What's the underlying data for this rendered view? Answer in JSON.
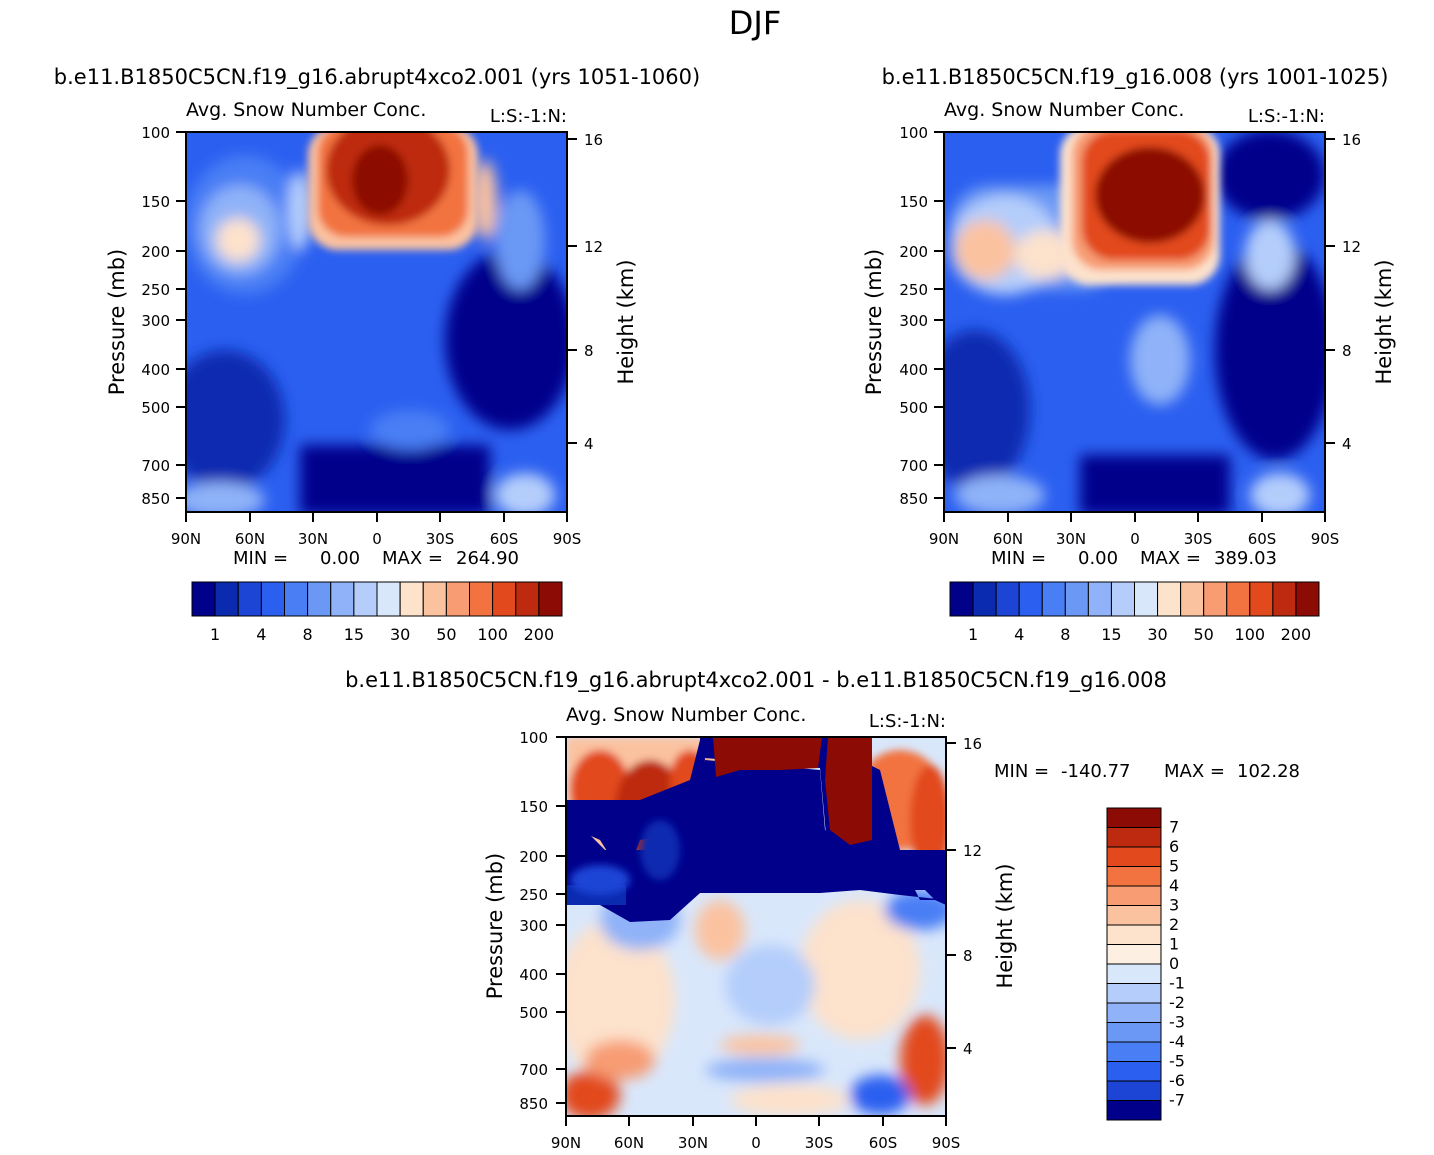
{
  "page_title": "DJF",
  "chart_data": [
    {
      "type": "heatmap",
      "id": "panel-exp",
      "case_title": "b.e11.B1850C5CN.f19_g16.abrupt4xco2.001 (yrs 1051-1060)",
      "title": "Avg. Snow Number Conc.",
      "right_string": "L:S:-1:N:",
      "xlabel": "",
      "ylabel": "Pressure (mb)",
      "ylabel_right": "Height (km)",
      "x_ticks": [
        "90N",
        "60N",
        "30N",
        "0",
        "30S",
        "60S",
        "90S"
      ],
      "y_ticks": [
        "100",
        "150",
        "200",
        "250",
        "300",
        "400",
        "500",
        "700",
        "850"
      ],
      "y_ticks_right": [
        "16",
        "12",
        "8",
        "4"
      ],
      "stats": {
        "min_label": "MIN =",
        "min": "0.00",
        "max_label": "MAX =",
        "max": "264.90"
      },
      "colorbar_levels": [
        1,
        2,
        4,
        6,
        8,
        10,
        15,
        20,
        30,
        40,
        50,
        70,
        100,
        150,
        200
      ],
      "colorbar_tick_labels": [
        "1",
        "4",
        "8",
        "15",
        "30",
        "50",
        "100",
        "200"
      ],
      "colorbar_colors": [
        "#00008b",
        "#0a2ab0",
        "#1c45d6",
        "#2b5ff0",
        "#4a7ef5",
        "#6b98f5",
        "#8fb2f8",
        "#b4cdfb",
        "#d9e7fb",
        "#fde2cc",
        "#fbc2a0",
        "#f79c73",
        "#f2733f",
        "#e24a1e",
        "#bd2a0f",
        "#8c0b05"
      ],
      "features": [
        {
          "region": "upper tropical max",
          "lat_range": "35N-50S",
          "pressure": "100-200",
          "value": "200+"
        },
        {
          "region": "NH midlatitude upper",
          "lat_range": "80N-40N",
          "pressure": "150-250",
          "value": "15-30"
        },
        {
          "region": "tropical lower",
          "lat_range": "20N-40S",
          "pressure": "700-850",
          "value": "<1"
        }
      ]
    },
    {
      "type": "heatmap",
      "id": "panel-ctl",
      "case_title": "b.e11.B1850C5CN.f19_g16.008 (yrs 1001-1025)",
      "title": "Avg. Snow Number Conc.",
      "right_string": "L:S:-1:N:",
      "xlabel": "",
      "ylabel": "Pressure (mb)",
      "ylabel_right": "Height (km)",
      "x_ticks": [
        "90N",
        "60N",
        "30N",
        "0",
        "30S",
        "60S",
        "90S"
      ],
      "y_ticks": [
        "100",
        "150",
        "200",
        "250",
        "300",
        "400",
        "500",
        "700",
        "850"
      ],
      "y_ticks_right": [
        "16",
        "12",
        "8",
        "4"
      ],
      "stats": {
        "min_label": "MIN =",
        "min": "0.00",
        "max_label": "MAX =",
        "max": "389.03"
      },
      "colorbar_levels": [
        1,
        2,
        4,
        6,
        8,
        10,
        15,
        20,
        30,
        40,
        50,
        70,
        100,
        150,
        200
      ],
      "colorbar_tick_labels": [
        "1",
        "4",
        "8",
        "15",
        "30",
        "50",
        "100",
        "200"
      ],
      "colorbar_colors": [
        "#00008b",
        "#0a2ab0",
        "#1c45d6",
        "#2b5ff0",
        "#4a7ef5",
        "#6b98f5",
        "#8fb2f8",
        "#b4cdfb",
        "#d9e7fb",
        "#fde2cc",
        "#fbc2a0",
        "#f79c73",
        "#f2733f",
        "#e24a1e",
        "#bd2a0f",
        "#8c0b05"
      ],
      "features": [
        {
          "region": "upper tropical max",
          "lat_range": "20N-40S",
          "pressure": "100-250",
          "value": "200+"
        },
        {
          "region": "NH midlatitude upper",
          "lat_range": "85N-40N",
          "pressure": "150-250",
          "value": "30-50"
        },
        {
          "region": "tropical lower",
          "lat_range": "20N-40S",
          "pressure": "700-850",
          "value": "<1"
        }
      ]
    },
    {
      "type": "heatmap",
      "id": "panel-diff",
      "case_title": "b.e11.B1850C5CN.f19_g16.abrupt4xco2.001 - b.e11.B1850C5CN.f19_g16.008",
      "title": "Avg. Snow Number Conc.",
      "right_string": "L:S:-1:N:",
      "xlabel": "",
      "ylabel": "Pressure (mb)",
      "ylabel_right": "Height (km)",
      "x_ticks": [
        "90N",
        "60N",
        "30N",
        "0",
        "30S",
        "60S",
        "90S"
      ],
      "y_ticks": [
        "100",
        "150",
        "200",
        "250",
        "300",
        "400",
        "500",
        "700",
        "850"
      ],
      "y_ticks_right": [
        "16",
        "12",
        "8",
        "4"
      ],
      "stats": {
        "min_label": "MIN =",
        "min": "-140.77",
        "max_label": "MAX =",
        "max": "102.28"
      },
      "colorbar_levels": [
        -7,
        -6,
        -5,
        -4,
        -3,
        -2,
        -1,
        0,
        1,
        2,
        3,
        4,
        5,
        6,
        7
      ],
      "colorbar_tick_labels": [
        "7",
        "6",
        "5",
        "4",
        "3",
        "2",
        "1",
        "0",
        "-1",
        "-2",
        "-3",
        "-4",
        "-5",
        "-6",
        "-7"
      ],
      "colorbar_colors": [
        "#8c0b05",
        "#bd2a0f",
        "#e24a1e",
        "#f2733f",
        "#f79c73",
        "#fbc2a0",
        "#fde2cc",
        "#fdf0e3",
        "#d9e7fb",
        "#b4cdfb",
        "#8fb2f8",
        "#6b98f5",
        "#4a7ef5",
        "#2b5ff0",
        "#1c45d6",
        "#00008b"
      ],
      "features": [
        {
          "region": "upper tropics decrease",
          "lat_range": "50N-35S",
          "pressure": "120-250",
          "value": "<-7"
        },
        {
          "region": "tropopause increase",
          "lat_range": "20N-35S",
          "pressure": "100-120",
          "value": ">7"
        },
        {
          "region": "SH upper increase",
          "lat_range": "35S-55S",
          "pressure": "100-170",
          "value": ">7"
        },
        {
          "region": "NH upper increase",
          "lat_range": "90N-50N",
          "pressure": "100-200",
          "value": "1-7"
        },
        {
          "region": "mid troposphere",
          "lat_range": "90N-90S",
          "pressure": "300-850",
          "value": "-1 to 1"
        }
      ]
    }
  ]
}
